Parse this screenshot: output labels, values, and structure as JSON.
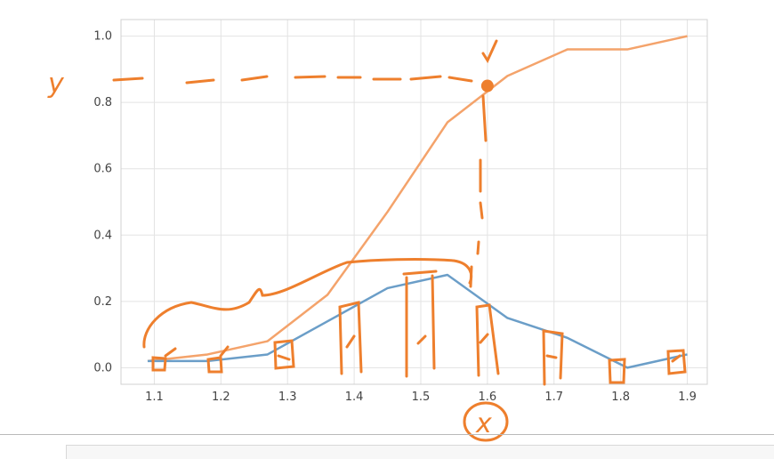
{
  "chart_data": {
    "type": "line",
    "title": "",
    "xlabel": "",
    "ylabel": "",
    "xlim": [
      1.05,
      1.93
    ],
    "ylim": [
      -0.05,
      1.05
    ],
    "xticks": [
      1.1,
      1.2,
      1.3,
      1.4,
      1.5,
      1.6,
      1.7,
      1.8,
      1.9
    ],
    "xtick_labels": [
      "1.1",
      "1.2",
      "1.3",
      "1.4",
      "1.5",
      "1.6",
      "1.7",
      "1.8",
      "1.9"
    ],
    "yticks": [
      0.0,
      0.2,
      0.4,
      0.6,
      0.8,
      1.0
    ],
    "ytick_labels": [
      "0.0",
      "0.2",
      "0.4",
      "0.6",
      "0.8",
      "1.0"
    ],
    "grid": true,
    "series": [
      {
        "color": "#f4a36b",
        "x": [
          1.09,
          1.18,
          1.27,
          1.36,
          1.45,
          1.54,
          1.63,
          1.72,
          1.81,
          1.9
        ],
        "y": [
          0.02,
          0.04,
          0.08,
          0.22,
          0.47,
          0.74,
          0.88,
          0.96,
          0.96,
          1.0
        ]
      },
      {
        "color": "#6b9ec8",
        "x": [
          1.09,
          1.18,
          1.27,
          1.36,
          1.45,
          1.54,
          1.63,
          1.72,
          1.81,
          1.9
        ],
        "y": [
          0.02,
          0.02,
          0.04,
          0.14,
          0.24,
          0.28,
          0.15,
          0.09,
          0.0,
          0.04
        ]
      }
    ]
  },
  "annotations": {
    "y_label": "y",
    "x_label": "x",
    "highlight_point": {
      "x": 1.6,
      "y": 0.85
    },
    "color": "#ee7f2d"
  }
}
